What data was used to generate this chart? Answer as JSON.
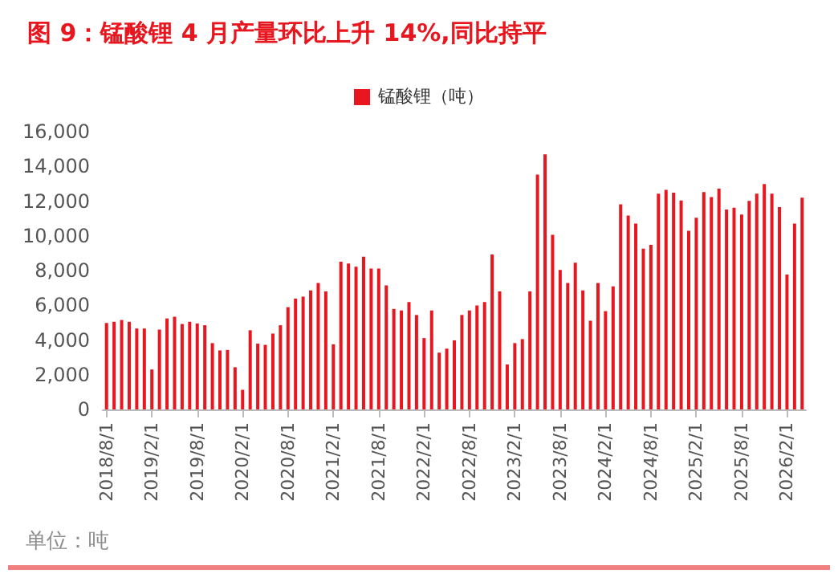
{
  "chart_data": {
    "type": "bar",
    "title": "图 9：锰酸锂 4 月产量环比上升 14%,同比持平",
    "categories": [
      "2018/8/1",
      null,
      null,
      null,
      null,
      null,
      "2019/2/1",
      null,
      null,
      null,
      null,
      null,
      "2019/8/1",
      null,
      null,
      null,
      null,
      null,
      "2020/2/1",
      null,
      null,
      null,
      null,
      null,
      "2020/8/1",
      null,
      null,
      null,
      null,
      null,
      "2021/2/1",
      null,
      null,
      null,
      null,
      null,
      "2021/8/1",
      null,
      null,
      null,
      null,
      null,
      "2022/2/1",
      null,
      null,
      null,
      null,
      null,
      "2022/8/1",
      null,
      null,
      null,
      null,
      null,
      "2023/2/1",
      null,
      null,
      null,
      null,
      null,
      "2023/8/1",
      null,
      null,
      null,
      null,
      null,
      "2024/2/1",
      null,
      null,
      null,
      null,
      null,
      "2024/8/1",
      null,
      null,
      null,
      null,
      null,
      "2025/2/1",
      null,
      null,
      null,
      null,
      null,
      "2025/8/1",
      null,
      null,
      null,
      null,
      null,
      "2026/2/1",
      null,
      null
    ],
    "series": [
      {
        "name": "锰酸锂（吨）",
        "color": "#e8161e",
        "values": [
          4980,
          5050,
          5150,
          5050,
          4660,
          4660,
          2300,
          4600,
          5240,
          5340,
          4920,
          5050,
          4950,
          4850,
          3820,
          3400,
          3430,
          2430,
          1130,
          4560,
          3790,
          3720,
          4370,
          4850,
          5890,
          6380,
          6500,
          6860,
          7280,
          6800,
          3750,
          8510,
          8410,
          8220,
          8800,
          8120,
          8120,
          7150,
          5790,
          5700,
          6180,
          5440,
          4110,
          5700,
          3270,
          3500,
          3980,
          5440,
          5700,
          5990,
          6180,
          8930,
          6800,
          2590,
          3820,
          4050,
          6800,
          13530,
          14690,
          10060,
          8030,
          7280,
          8450,
          6860,
          5110,
          7280,
          5660,
          7090,
          11810,
          11170,
          10710,
          9260,
          9480,
          12430,
          12650,
          12490,
          12040,
          10290,
          11040,
          12520,
          12230,
          12720,
          11520,
          11620,
          11230,
          12010,
          12430,
          12980,
          12430,
          11650,
          7770,
          10710,
          12200
        ]
      }
    ],
    "ylim": [
      0,
      16000
    ],
    "yticks": [
      0,
      {
        "value": 2000,
        "label": "2,000"
      },
      {
        "value": 4000,
        "label": "4,000"
      },
      {
        "value": 6000,
        "label": "6,000"
      },
      {
        "value": 8000,
        "label": "8,000"
      },
      {
        "value": 10000,
        "label": "10,000"
      },
      {
        "value": 12000,
        "label": "12,000"
      },
      {
        "value": 14000,
        "label": "14,000"
      },
      {
        "value": 16000,
        "label": "16,000"
      }
    ],
    "legend": "top",
    "annotations": [
      "单位：吨"
    ]
  }
}
